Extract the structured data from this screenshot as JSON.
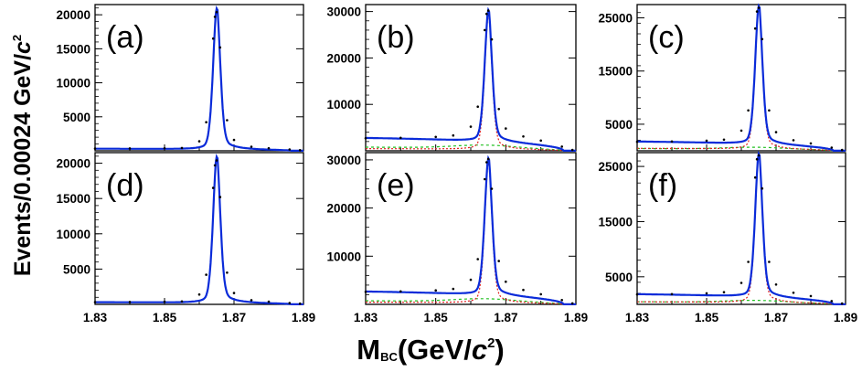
{
  "y_axis_title": {
    "main": "Events/0.00024 GeV/",
    "italic": "c",
    "sup": "2"
  },
  "x_axis_title": {
    "main": "M",
    "sub": "BC",
    "paren_open": "(GeV/",
    "italic": "c",
    "sup": "2",
    "paren_close": ")"
  },
  "colors": {
    "data": "#000000",
    "total_fit": "#0a2bd9",
    "signal": "#e02020",
    "background": "#20c020",
    "frame": "#000000"
  },
  "chart_data": [
    {
      "type": "line",
      "panel": "(a)",
      "xlim": [
        1.83,
        1.89
      ],
      "ylim": [
        0,
        21500
      ],
      "yticks": [
        "5000",
        "10000",
        "15000",
        "20000"
      ],
      "xticks": [],
      "peak": 20400,
      "baseline": 300,
      "bkg_level": 300,
      "show_components": false,
      "x": [
        1.83,
        1.84,
        1.85,
        1.855,
        1.86,
        1.862,
        1.864,
        1.8645,
        1.865,
        1.866,
        1.868,
        1.87,
        1.875,
        1.88,
        1.886,
        1.889
      ],
      "y_total": [
        320,
        330,
        360,
        420,
        1400,
        4200,
        16500,
        19700,
        20400,
        15200,
        4500,
        1600,
        600,
        380,
        200,
        100
      ]
    },
    {
      "type": "line",
      "panel": "(b)",
      "xlim": [
        1.83,
        1.89
      ],
      "ylim": [
        0,
        31500
      ],
      "yticks": [
        "10000",
        "20000",
        "30000"
      ],
      "xticks": [],
      "peak": 30200,
      "baseline": 2700,
      "bkg_level": 2200,
      "show_components": true,
      "x": [
        1.83,
        1.84,
        1.85,
        1.855,
        1.86,
        1.862,
        1.864,
        1.8645,
        1.865,
        1.866,
        1.868,
        1.87,
        1.875,
        1.88,
        1.886,
        1.889
      ],
      "y_total": [
        2700,
        2800,
        3000,
        3300,
        5200,
        9500,
        26000,
        29500,
        30200,
        24000,
        9000,
        4800,
        3100,
        2200,
        900,
        200
      ]
    },
    {
      "type": "line",
      "panel": "(c)",
      "xlim": [
        1.83,
        1.89
      ],
      "ylim": [
        0,
        27500
      ],
      "yticks": [
        "5000",
        "15000",
        "25000"
      ],
      "xticks": [],
      "peak": 26900,
      "baseline": 1700,
      "bkg_level": 1200,
      "show_components": true,
      "x": [
        1.83,
        1.84,
        1.85,
        1.855,
        1.86,
        1.862,
        1.864,
        1.8645,
        1.865,
        1.866,
        1.868,
        1.87,
        1.875,
        1.88,
        1.886,
        1.889
      ],
      "y_total": [
        1700,
        1750,
        1900,
        2100,
        3800,
        7600,
        23000,
        26200,
        26900,
        21000,
        7600,
        3500,
        2000,
        1400,
        600,
        150
      ]
    },
    {
      "type": "line",
      "panel": "(d)",
      "xlim": [
        1.83,
        1.89
      ],
      "ylim": [
        0,
        21500
      ],
      "yticks": [
        "5000",
        "10000",
        "15000",
        "20000"
      ],
      "xticks": [
        "1.83",
        "1.85",
        "1.87",
        "1.89"
      ],
      "peak": 20400,
      "baseline": 300,
      "bkg_level": 300,
      "show_components": false,
      "x": [
        1.83,
        1.84,
        1.85,
        1.855,
        1.86,
        1.862,
        1.864,
        1.8645,
        1.865,
        1.866,
        1.868,
        1.87,
        1.875,
        1.88,
        1.886,
        1.889
      ],
      "y_total": [
        320,
        330,
        360,
        420,
        1400,
        4200,
        16500,
        19700,
        20400,
        15200,
        4500,
        1600,
        600,
        380,
        200,
        100
      ]
    },
    {
      "type": "line",
      "panel": "(e)",
      "xlim": [
        1.83,
        1.89
      ],
      "ylim": [
        0,
        31500
      ],
      "yticks": [
        "10000",
        "20000",
        "30000"
      ],
      "xticks": [
        "1.83",
        "1.85",
        "1.87",
        "1.89"
      ],
      "peak": 30200,
      "baseline": 2600,
      "bkg_level": 2100,
      "show_components": true,
      "x": [
        1.83,
        1.84,
        1.85,
        1.855,
        1.86,
        1.862,
        1.864,
        1.8645,
        1.865,
        1.866,
        1.868,
        1.87,
        1.875,
        1.88,
        1.886,
        1.889
      ],
      "y_total": [
        2600,
        2700,
        2900,
        3200,
        5100,
        9400,
        26000,
        29500,
        30200,
        24000,
        9000,
        4700,
        3000,
        2100,
        900,
        200
      ]
    },
    {
      "type": "line",
      "panel": "(f)",
      "xlim": [
        1.83,
        1.89
      ],
      "ylim": [
        0,
        27500
      ],
      "yticks": [
        "5000",
        "15000",
        "25000"
      ],
      "xticks": [
        "1.83",
        "1.85",
        "1.87",
        "1.89"
      ],
      "peak": 27000,
      "baseline": 1800,
      "bkg_level": 1300,
      "show_components": true,
      "x": [
        1.83,
        1.84,
        1.85,
        1.855,
        1.86,
        1.862,
        1.864,
        1.8645,
        1.865,
        1.866,
        1.868,
        1.87,
        1.875,
        1.88,
        1.886,
        1.889
      ],
      "y_total": [
        1800,
        1850,
        2000,
        2200,
        3900,
        7700,
        23000,
        26300,
        27000,
        21000,
        7700,
        3600,
        2100,
        1500,
        600,
        150
      ]
    }
  ]
}
